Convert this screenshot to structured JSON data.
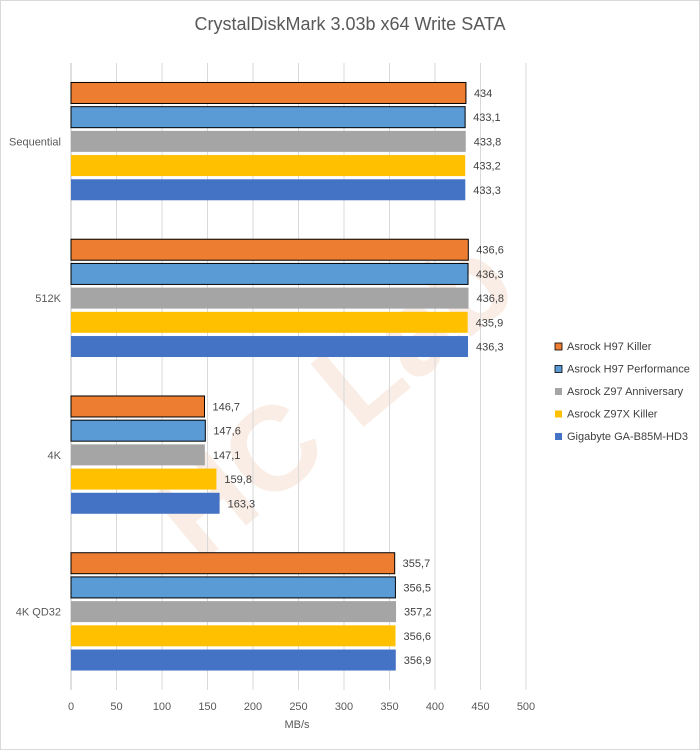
{
  "chart_data": {
    "type": "bar",
    "orientation": "horizontal",
    "title": "CrystalDiskMark 3.03b x64 Write SATA",
    "xlabel": "MB/s",
    "ylabel": "",
    "xlim": [
      0,
      500
    ],
    "xticks": [
      0,
      50,
      100,
      150,
      200,
      250,
      300,
      350,
      400,
      450,
      500
    ],
    "categories": [
      "Sequential",
      "512K",
      "4K",
      "4K QD32"
    ],
    "series": [
      {
        "name": "Asrock H97 Killer",
        "color": "#ed7d31",
        "values": [
          434,
          436.6,
          146.7,
          355.7
        ],
        "labels": [
          "434",
          "436,6",
          "146,7",
          "355,7"
        ]
      },
      {
        "name": "Asrock H97 Performance",
        "color": "#5b9bd5",
        "values": [
          433.1,
          436.3,
          147.6,
          356.5
        ],
        "labels": [
          "433,1",
          "436,3",
          "147,6",
          "356,5"
        ]
      },
      {
        "name": "Asrock Z97 Anniversary",
        "color": "#a5a5a5",
        "values": [
          433.8,
          436.8,
          147.1,
          357.2
        ],
        "labels": [
          "433,8",
          "436,8",
          "147,1",
          "357,2"
        ]
      },
      {
        "name": "Asrock Z97X Killer",
        "color": "#ffc000",
        "values": [
          433.2,
          435.9,
          159.8,
          356.6
        ],
        "labels": [
          "433,2",
          "435,9",
          "159,8",
          "356,6"
        ]
      },
      {
        "name": "Gigabyte GA-B85M-HD3",
        "color": "#4472c4",
        "values": [
          433.3,
          436.3,
          163.3,
          356.9
        ],
        "labels": [
          "433,3",
          "436,3",
          "163,3",
          "356,9"
        ]
      }
    ],
    "grid": true,
    "legend_position": "right"
  }
}
